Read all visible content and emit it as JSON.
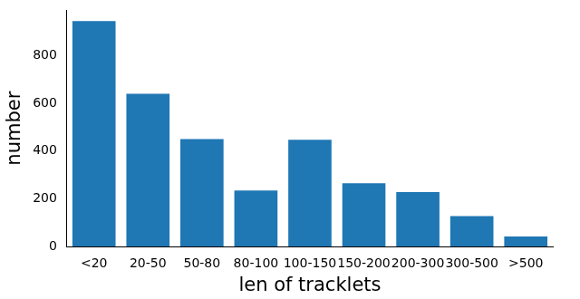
{
  "chart_data": {
    "type": "bar",
    "x_label": "len of tracklets",
    "y_label": "number",
    "categories": [
      "<20",
      "20-50",
      "50-80",
      "80-100",
      "100-150",
      "150-200",
      "200-300",
      "300-500",
      ">500"
    ],
    "values": [
      945,
      640,
      450,
      235,
      447,
      265,
      228,
      127,
      42
    ],
    "color": "#1f77b4",
    "ylim": [
      0,
      990
    ],
    "yticks": [
      0,
      200,
      400,
      600,
      800
    ],
    "grid": false
  }
}
